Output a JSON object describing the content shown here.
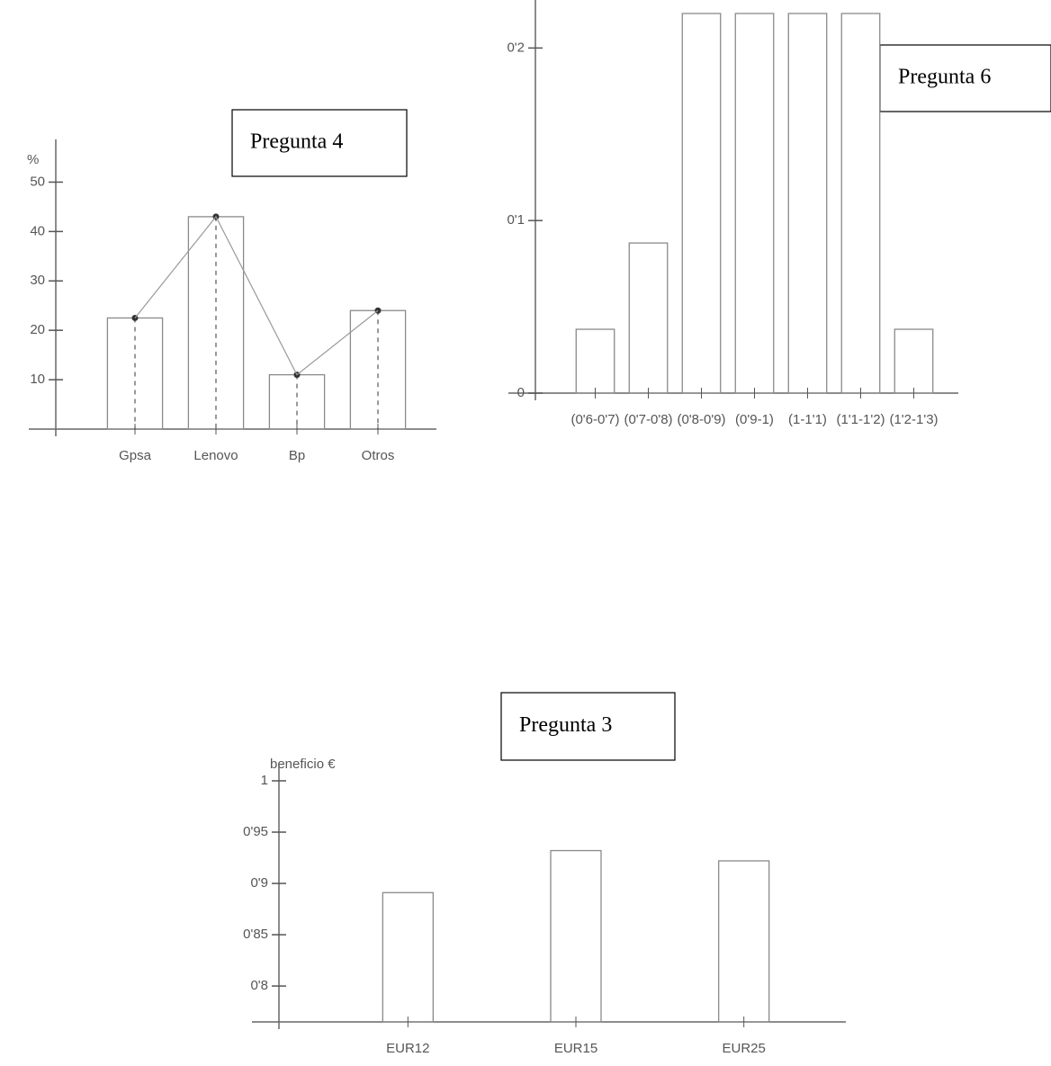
{
  "chart_data": [
    {
      "type": "bar",
      "title": "Pregunta 4",
      "y_label": "%",
      "categories": [
        "Gpsa",
        "Lenovo",
        "Bp",
        "Otros"
      ],
      "values": [
        22.5,
        43,
        11,
        24
      ],
      "ylim": [
        0,
        55
      ],
      "yticks": [
        10,
        20,
        30,
        40,
        50
      ],
      "polygon": true,
      "color": "#8a8a8a"
    },
    {
      "type": "bar",
      "title": "Pregunta 6",
      "categories": [
        "(0'6-0'7)",
        "(0'7-0'8)",
        "(0'8-0'9)",
        "(0'9-1)",
        "(1-1'1)",
        "(1'1-1'2)",
        "(1'2-1'3)"
      ],
      "values": [
        0.037,
        0.087,
        0.22,
        0.22,
        0.22,
        0.22,
        0.037
      ],
      "ylim": [
        0,
        0.22
      ],
      "yticks": [
        0,
        {
          "value": 0.1,
          "label": "0'1"
        },
        {
          "value": 0.2,
          "label": "0'2"
        }
      ],
      "polygon": false,
      "color": "#8a8a8a"
    },
    {
      "type": "bar",
      "title": "Pregunta 3",
      "y_label": "beneficio €",
      "categories": [
        "EUR12",
        "EUR15",
        "EUR25"
      ],
      "values": [
        0.891,
        0.932,
        0.922
      ],
      "ylim": [
        0.765,
        1
      ],
      "yticks": [
        {
          "value": 0.8,
          "label": "0'8"
        },
        {
          "value": 0.85,
          "label": "0'85"
        },
        {
          "value": 0.9,
          "label": "0'9"
        },
        {
          "value": 0.95,
          "label": "0'95"
        },
        1
      ],
      "polygon": false,
      "color": "#8a8a8a"
    }
  ]
}
